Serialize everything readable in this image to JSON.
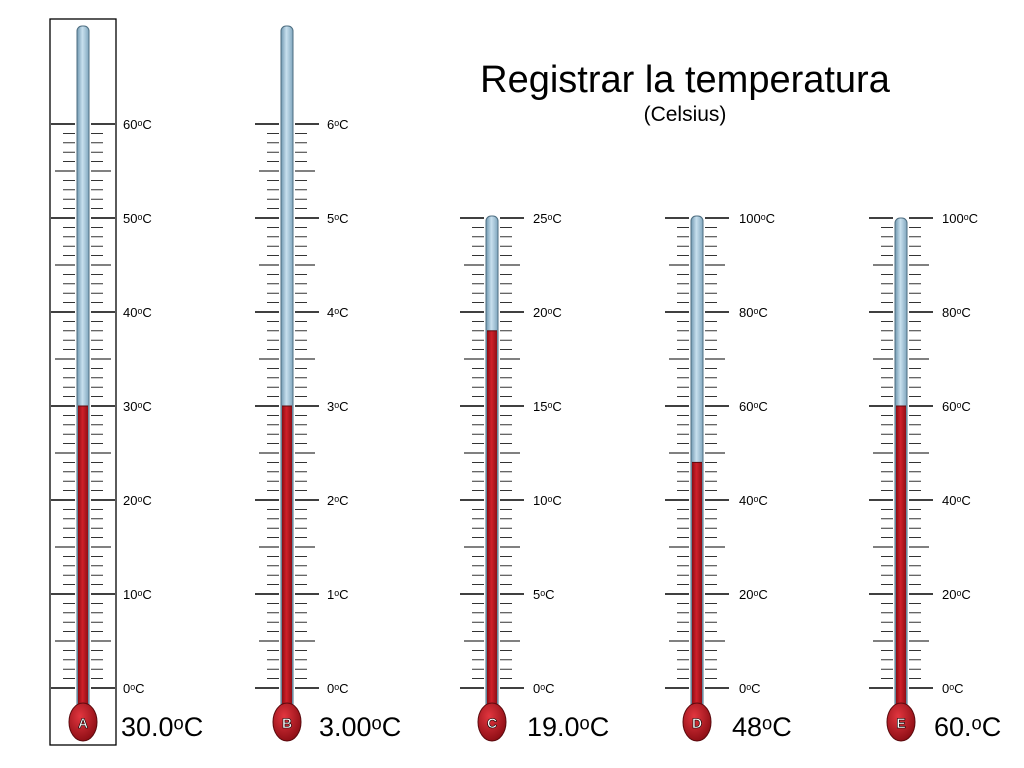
{
  "title": "Registrar la temperatura",
  "subtitle": "(Celsius)",
  "colors": {
    "liquid": "#b5121b",
    "liquid_dark": "#7a0a10",
    "glass": "#9cc3da",
    "glass_edge": "#4d6d80",
    "tick": "#000000",
    "frame": "#000000"
  },
  "thermometers": [
    {
      "id": "A",
      "letter": "A",
      "reading": "30.0ᵒC",
      "value": 30,
      "scale_max": 60,
      "selected": true,
      "labels": [
        "60ᵒC",
        "50ᵒC",
        "40ᵒC",
        "30ᵒC",
        "20ᵒC",
        "10ᵒC",
        "0ᵒC"
      ]
    },
    {
      "id": "B",
      "letter": "B",
      "reading": "3.00ᵒC",
      "value": 3,
      "scale_max": 6,
      "selected": false,
      "labels": [
        "6ᵒC",
        "5ᵒC",
        "4ᵒC",
        "3ᵒC",
        "2ᵒC",
        "1ᵒC",
        "0ᵒC"
      ]
    },
    {
      "id": "C",
      "letter": "C",
      "reading": "19.0ᵒC",
      "value": 19,
      "scale_max": 25,
      "selected": false,
      "labels": [
        "25ᵒC",
        "20ᵒC",
        "15ᵒC",
        "10ᵒC",
        "5ᵒC",
        "0ᵒC"
      ]
    },
    {
      "id": "D",
      "letter": "D",
      "reading": "48ᵒC",
      "value": 48,
      "scale_max": 100,
      "selected": false,
      "labels": [
        "100ᵒC",
        "80ᵒC",
        "60ᵒC",
        "40ᵒC",
        "20ᵒC",
        "0ᵒC"
      ]
    },
    {
      "id": "E",
      "letter": "E",
      "reading": "60.ᵒC",
      "value": 60,
      "scale_max": 100,
      "selected": false,
      "labels": [
        "100ᵒC",
        "80ᵒC",
        "60ᵒC",
        "40ᵒC",
        "20ᵒC",
        "0ᵒC"
      ]
    }
  ]
}
